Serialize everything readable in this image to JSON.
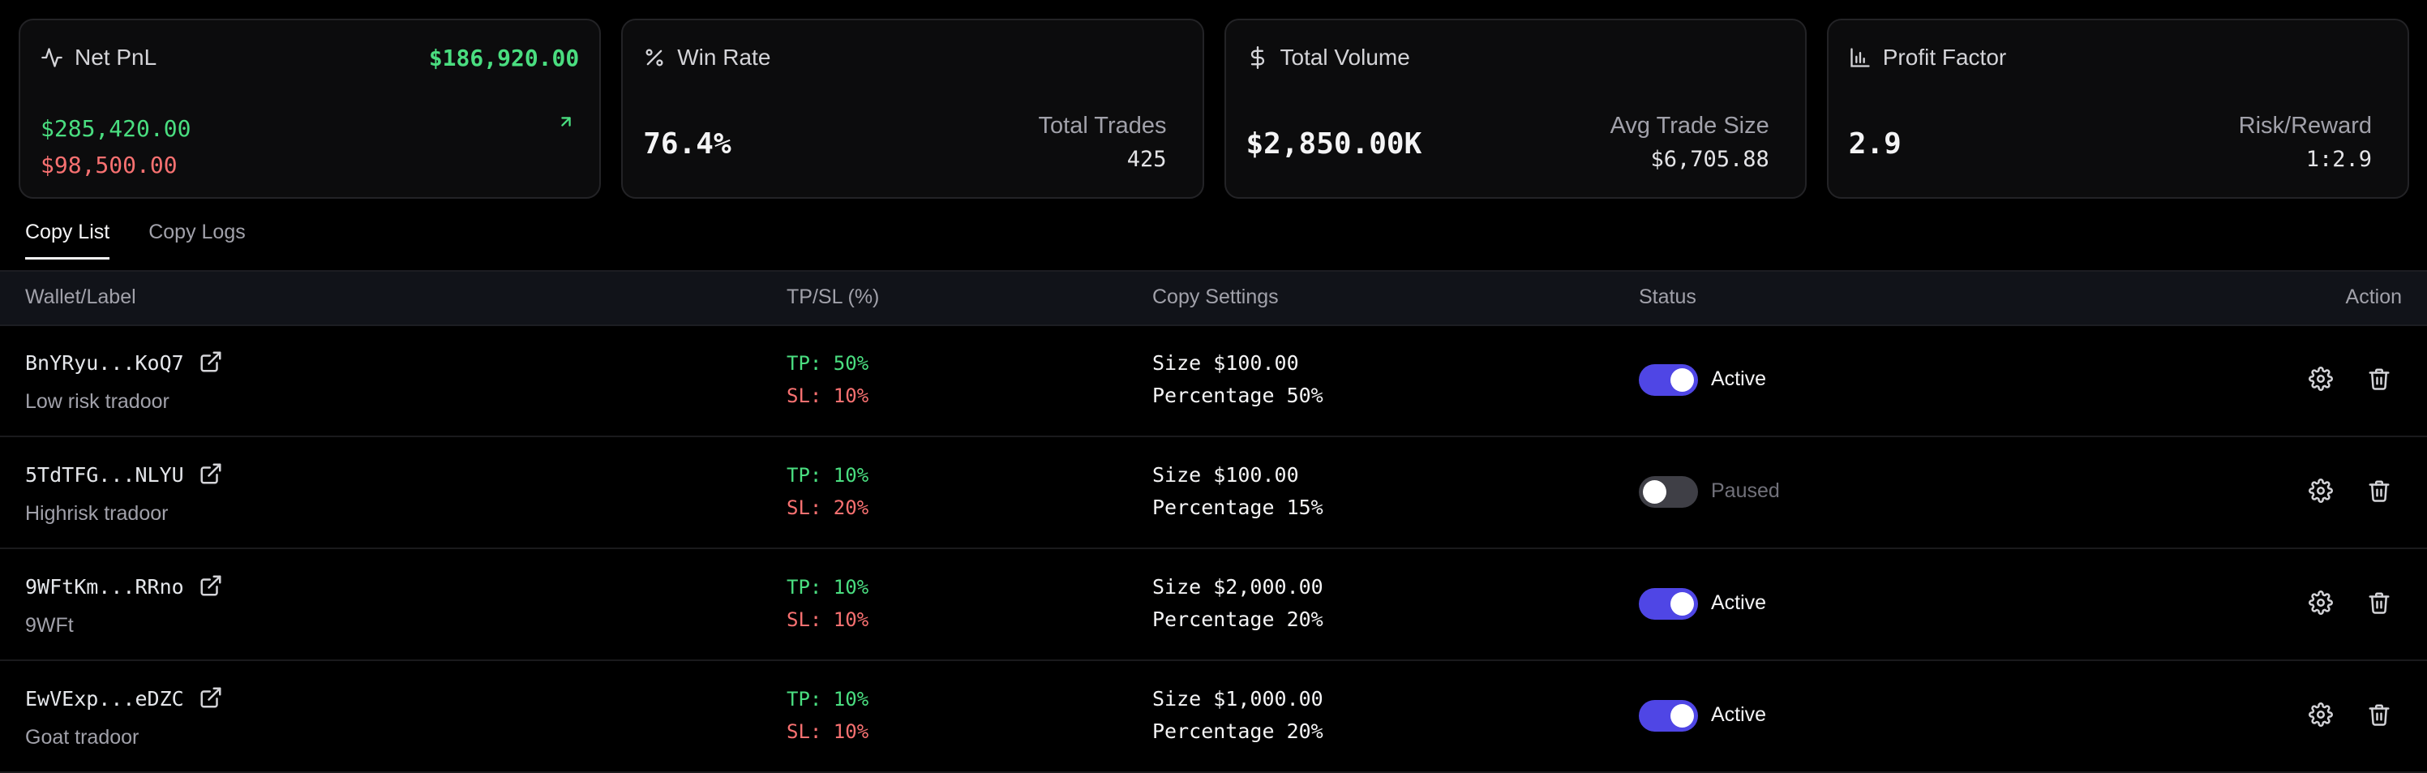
{
  "stats": {
    "net_pnl": {
      "title": "Net PnL",
      "value": "$186,920.00",
      "gains": "$285,420.00",
      "losses": "$98,500.00",
      "icon": "activity-icon"
    },
    "win_rate": {
      "title": "Win Rate",
      "value": "76.4%",
      "sub_label": "Total Trades",
      "sub_value": "425",
      "icon": "percent-icon"
    },
    "total_volume": {
      "title": "Total Volume",
      "value": "$2,850.00K",
      "sub_label": "Avg Trade Size",
      "sub_value": "$6,705.88",
      "icon": "dollar-icon"
    },
    "profit_factor": {
      "title": "Profit Factor",
      "value": "2.9",
      "sub_label": "Risk/Reward",
      "sub_value": "1:2.9",
      "icon": "bar-chart-icon"
    }
  },
  "tabs": [
    {
      "label": "Copy List",
      "active": true
    },
    {
      "label": "Copy Logs",
      "active": false
    }
  ],
  "table": {
    "headers": {
      "wallet": "Wallet/Label",
      "tpsl": "TP/SL (%)",
      "settings": "Copy Settings",
      "status": "Status",
      "action": "Action"
    },
    "rows": [
      {
        "wallet": "BnYRyu...KoQ7",
        "label": "Low risk tradoor",
        "tp": "TP: 50%",
        "sl": "SL: 10%",
        "size": "Size $100.00",
        "percentage": "Percentage 50%",
        "active": true,
        "status": "Active"
      },
      {
        "wallet": "5TdTFG...NLYU",
        "label": "Highrisk tradoor",
        "tp": "TP: 10%",
        "sl": "SL: 20%",
        "size": "Size $100.00",
        "percentage": "Percentage 15%",
        "active": false,
        "status": "Paused"
      },
      {
        "wallet": "9WFtKm...RRno",
        "label": "9WFt",
        "tp": "TP: 10%",
        "sl": "SL: 10%",
        "size": "Size $2,000.00",
        "percentage": "Percentage 20%",
        "active": true,
        "status": "Active"
      },
      {
        "wallet": "EwVExp...eDZC",
        "label": "Goat tradoor",
        "tp": "TP: 10%",
        "sl": "SL: 10%",
        "size": "Size $1,000.00",
        "percentage": "Percentage 20%",
        "active": true,
        "status": "Active"
      }
    ]
  },
  "colors": {
    "positive": "#4ade80",
    "negative": "#f87171",
    "accent": "#4f46e5"
  }
}
